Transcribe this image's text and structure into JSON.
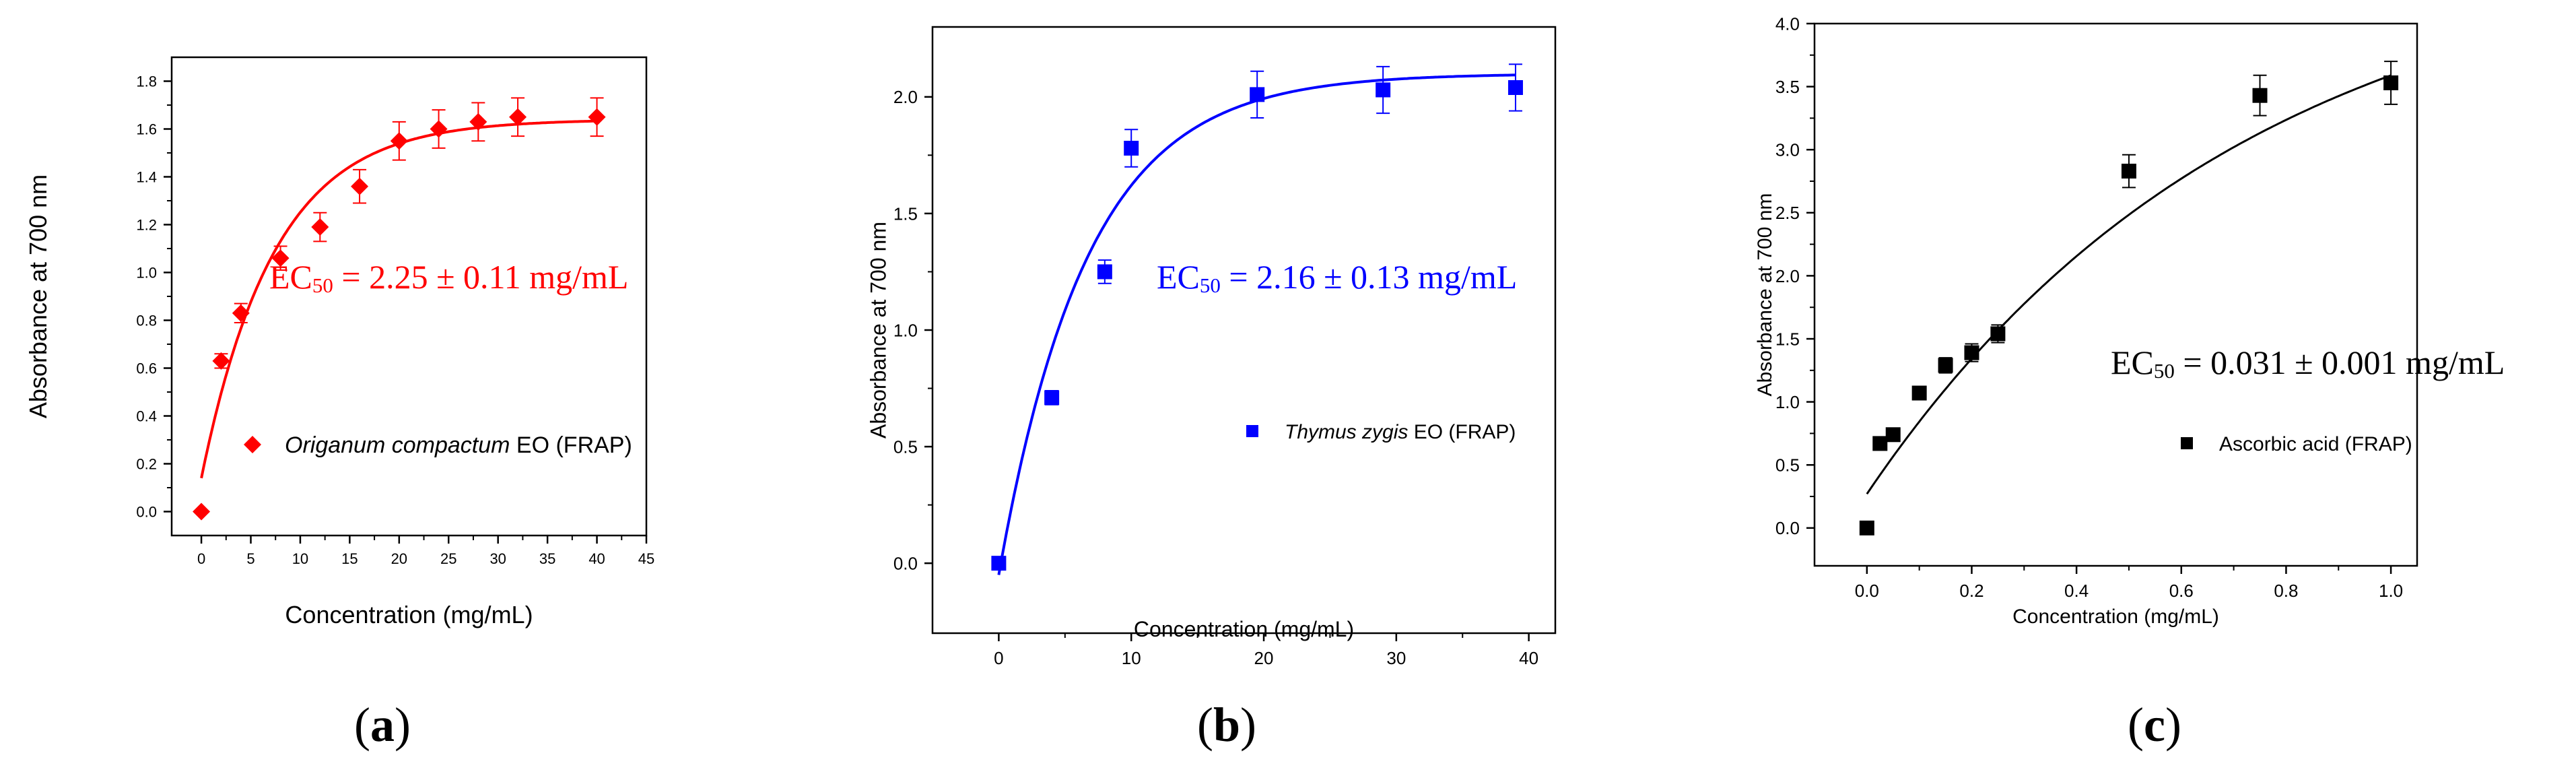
{
  "chart_data": [
    {
      "type": "scatter",
      "panel_label": "(a)",
      "panel_letter": "a",
      "xlabel": "Concentration (mg/mL)",
      "ylabel": "Absorbance at 700 nm",
      "xlim": [
        -3,
        45
      ],
      "ylim": [
        -0.1,
        1.9
      ],
      "xticks": [
        0,
        5,
        10,
        15,
        20,
        25,
        30,
        35,
        40,
        45
      ],
      "yticks": [
        0.0,
        0.2,
        0.4,
        0.6,
        0.8,
        1.0,
        1.2,
        1.4,
        1.6,
        1.8
      ],
      "ytick_decimals": 1,
      "color": "#ff0000",
      "marker": "diamond",
      "annotation": {
        "prefix": "EC",
        "subscript": "50",
        "text": "= 2.25 ± 0.11 mg/mL"
      },
      "legend": {
        "italic": "Origanum compactum",
        "text": " EO (FRAP)"
      },
      "series": [
        {
          "name": "Origanum compactum EO (FRAP)",
          "x": [
            0,
            2,
            4,
            8,
            12,
            16,
            20,
            24,
            28,
            32,
            40
          ],
          "y": [
            0.0,
            0.63,
            0.83,
            1.06,
            1.19,
            1.36,
            1.55,
            1.6,
            1.63,
            1.65,
            1.65
          ],
          "error": [
            0.0,
            0.03,
            0.04,
            0.05,
            0.06,
            0.07,
            0.08,
            0.08,
            0.08,
            0.08,
            0.08
          ]
        }
      ],
      "fit": {
        "model": "exp_rise",
        "y0": 0.14,
        "A": 1.5,
        "k": 0.135
      }
    },
    {
      "type": "scatter",
      "panel_label": "(b)",
      "panel_letter": "b",
      "xlabel": "Concentration (mg/mL)",
      "ylabel": "Absorbance at 700 nm",
      "xlim": [
        -5,
        42
      ],
      "ylim": [
        -0.3,
        2.3
      ],
      "xticks": [
        0,
        10,
        20,
        30,
        40
      ],
      "yticks": [
        0.0,
        0.5,
        1.0,
        1.5,
        2.0
      ],
      "ytick_decimals": 1,
      "color": "#0000ff",
      "marker": "square",
      "annotation": {
        "prefix": "EC",
        "subscript": "50",
        "text": "= 2.16 ± 0.13 mg/mL"
      },
      "legend": {
        "italic": "Thymus zygis",
        "text": " EO (FRAP)"
      },
      "series": [
        {
          "name": "Thymus zygis EO (FRAP)",
          "x": [
            0,
            4,
            8,
            10,
            19.5,
            29,
            39
          ],
          "y": [
            0.0,
            0.71,
            1.25,
            1.78,
            2.01,
            2.03,
            2.04
          ],
          "error": [
            0.0,
            0.03,
            0.05,
            0.08,
            0.1,
            0.1,
            0.1
          ]
        }
      ],
      "fit": {
        "model": "exp_rise",
        "y0": -0.05,
        "A": 2.15,
        "k": 0.15
      }
    },
    {
      "type": "scatter",
      "panel_label": "(c)",
      "panel_letter": "c",
      "xlabel": "Concentration (mg/mL)",
      "ylabel": "Absorbance at 700 nm",
      "xlim": [
        -0.1,
        1.05
      ],
      "ylim": [
        -0.3,
        4.0
      ],
      "xticks": [
        0.0,
        0.2,
        0.4,
        0.6,
        0.8,
        1.0
      ],
      "yticks": [
        0.0,
        0.5,
        1.0,
        1.5,
        2.0,
        2.5,
        3.0,
        3.5,
        4.0
      ],
      "ytick_decimals": 1,
      "color": "#000000",
      "marker": "square",
      "annotation": {
        "prefix": "EC",
        "subscript": "50",
        "text": "= 0.031 ± 0.001 mg/mL"
      },
      "legend": {
        "italic": "",
        "text": "Ascorbic acid (FRAP)"
      },
      "series": [
        {
          "name": "Ascorbic acid (FRAP)",
          "x": [
            0.0,
            0.025,
            0.05,
            0.1,
            0.15,
            0.2,
            0.25,
            0.5,
            0.75,
            1.0
          ],
          "y": [
            0.0,
            0.67,
            0.74,
            1.07,
            1.29,
            1.39,
            1.54,
            2.83,
            3.43,
            3.53
          ],
          "error": [
            0.0,
            0.02,
            0.03,
            0.05,
            0.06,
            0.07,
            0.07,
            0.13,
            0.16,
            0.17
          ]
        }
      ],
      "fit": {
        "model": "exp_rise",
        "y0": 0.27,
        "A": 4.42,
        "k": 1.39
      }
    }
  ]
}
